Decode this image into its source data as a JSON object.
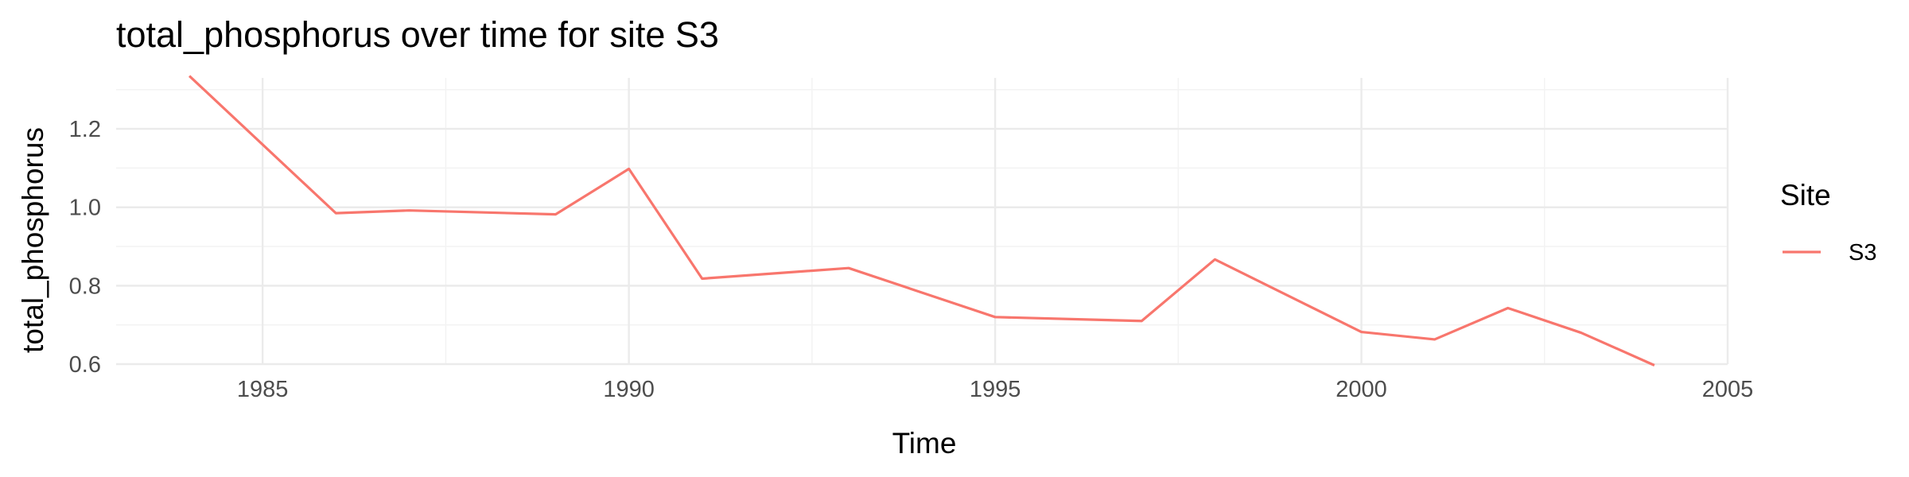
{
  "chart_data": {
    "type": "line",
    "title": "total_phosphorus over time for site S3",
    "xlabel": "Time",
    "ylabel": "total_phosphorus",
    "xlim": [
      1983,
      2005
    ],
    "ylim": [
      0.6,
      1.33
    ],
    "x_ticks": [
      1985,
      1990,
      1995,
      2000,
      2005
    ],
    "y_ticks": [
      0.6,
      0.8,
      1.0,
      1.2
    ],
    "y_tick_labels": [
      "0.6",
      "0.8",
      "1.0",
      "1.2"
    ],
    "grid": true,
    "legend": {
      "title": "Site",
      "placement": "right"
    },
    "series": [
      {
        "name": "S3",
        "color": "#F8766D",
        "x": [
          1984,
          1986,
          1987,
          1989,
          1990,
          1991,
          1993,
          1995,
          1997,
          1998,
          2000,
          2001,
          2002,
          2003,
          2004
        ],
        "values": [
          1.335,
          0.985,
          0.992,
          0.982,
          1.098,
          0.818,
          0.845,
          0.72,
          0.71,
          0.867,
          0.682,
          0.663,
          0.743,
          0.68,
          0.597
        ]
      }
    ]
  }
}
